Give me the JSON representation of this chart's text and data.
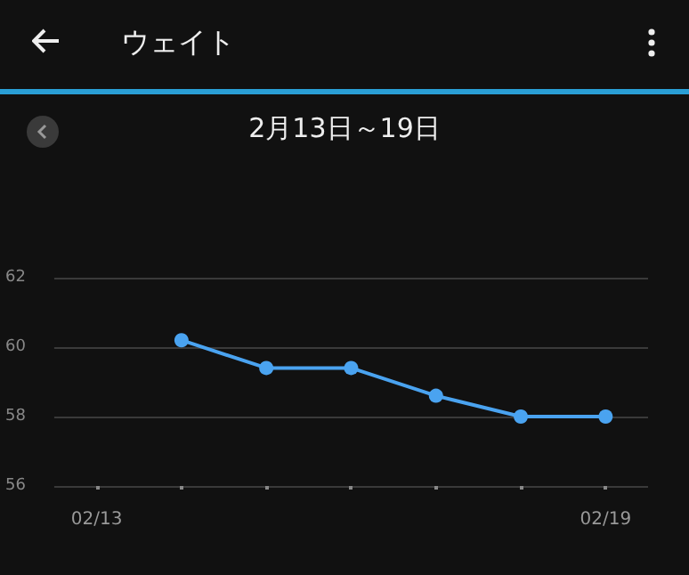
{
  "chart_data": {
    "type": "line",
    "title": "ウェイト",
    "subtitle": "2月13日～19日",
    "categories": [
      "02/13",
      null,
      null,
      null,
      null,
      null,
      "02/19"
    ],
    "series": [
      {
        "color": "#4aa3f0",
        "values": [
          null,
          60.2,
          59.4,
          59.4,
          58.6,
          58.0,
          58.0
        ]
      }
    ],
    "ylim": [
      56,
      62
    ],
    "yticks": [
      56,
      58,
      60,
      62
    ],
    "grid": "y",
    "marker": "circle"
  }
}
